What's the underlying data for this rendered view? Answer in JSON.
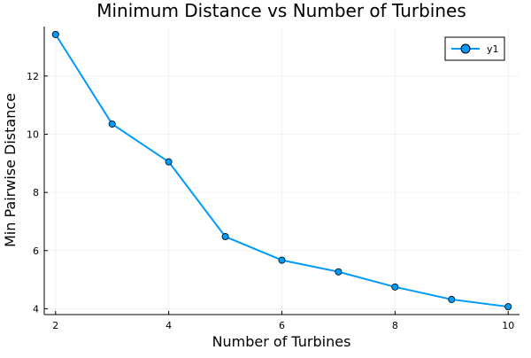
{
  "chart_data": {
    "type": "line",
    "title": "Minimum Distance vs Number of Turbines",
    "xlabel": "Number of Turbines",
    "ylabel": "Min Pairwise Distance",
    "xlim": [
      1.8,
      10.2
    ],
    "ylim": [
      3.8,
      13.7
    ],
    "xticks": [
      2,
      4,
      6,
      8,
      10
    ],
    "yticks": [
      4,
      6,
      8,
      10,
      12
    ],
    "grid": true,
    "legend_position": "top-right",
    "series": [
      {
        "name": "y1",
        "color": "#009AFA",
        "marker": "circle",
        "x": [
          2,
          3,
          4,
          5,
          6,
          7,
          8,
          9,
          10
        ],
        "y": [
          13.43,
          10.35,
          9.05,
          6.48,
          5.67,
          5.27,
          4.75,
          4.32,
          4.07
        ]
      }
    ]
  }
}
